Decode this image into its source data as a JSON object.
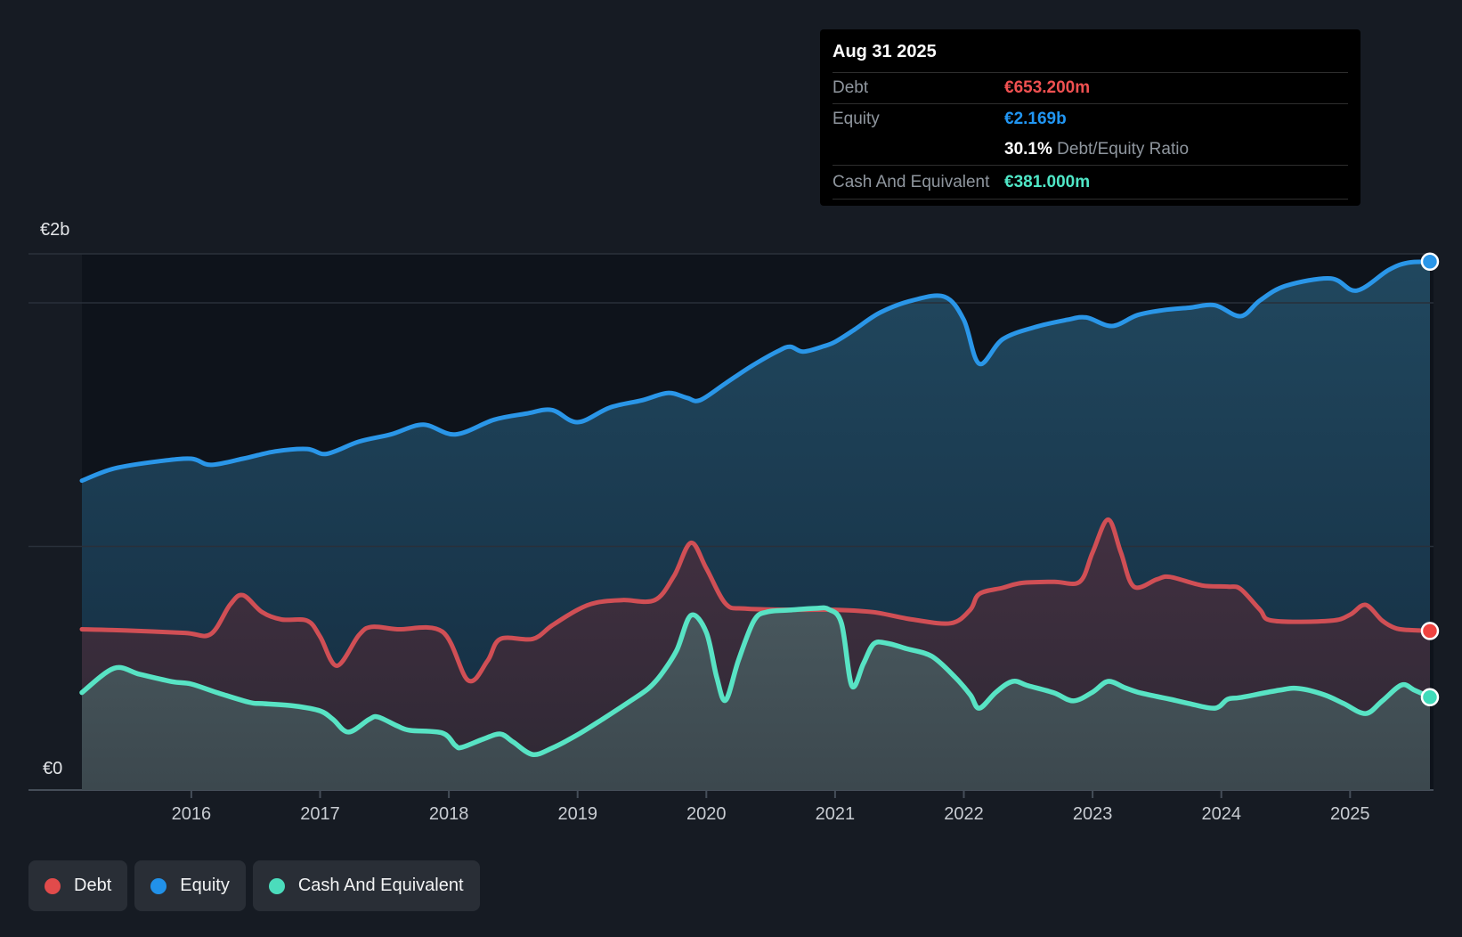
{
  "tooltip": {
    "date": "Aug 31 2025",
    "debt_label": "Debt",
    "debt_value": "€653.200m",
    "equity_label": "Equity",
    "equity_value": "€2.169b",
    "ratio_value": "30.1%",
    "ratio_label": "Debt/Equity Ratio",
    "cash_label": "Cash And Equivalent",
    "cash_value": "€381.000m"
  },
  "legend": {
    "items": [
      {
        "label": "Debt",
        "color": "#e14b4b"
      },
      {
        "label": "Equity",
        "color": "#2191e9"
      },
      {
        "label": "Cash And Equivalent",
        "color": "#4bdcbc"
      }
    ]
  },
  "colors": {
    "background": "#161b23",
    "plot_background": "#0e131b",
    "gridline": "#29303a",
    "plot_top_border": "#2a313b",
    "axis_line": "#454e59",
    "debt": "#d04f55",
    "equity": "#2a96e8",
    "cash": "#58e3c4",
    "debt_marker": "#ee4340",
    "equity_marker": "#2a96e8",
    "cash_marker": "#3fdbba",
    "debt_value_text": "#f05151",
    "equity_value_text": "#2196f3",
    "cash_value_text": "#4fe6c6"
  },
  "chart_data": {
    "type": "area",
    "unit": "EUR billions",
    "x_unit": "decimal_year",
    "grid": true,
    "legend_position": "bottom-left",
    "x_axis": {
      "tick_labels": [
        "2016",
        "2017",
        "2018",
        "2019",
        "2020",
        "2021",
        "2022",
        "2023",
        "2024",
        "2025"
      ],
      "range_decimal_years": [
        2015.15,
        2025.66
      ]
    },
    "y_axis": {
      "top_label": "€2b",
      "bottom_label": "€0",
      "ylim": [
        0,
        2.2
      ],
      "gridline_values": [
        1,
        2
      ]
    },
    "series": [
      {
        "name": "Debt",
        "points": [
          [
            2015.15,
            0.66
          ],
          [
            2015.5,
            0.655
          ],
          [
            2015.95,
            0.645
          ],
          [
            2016.15,
            0.64
          ],
          [
            2016.3,
            0.76
          ],
          [
            2016.4,
            0.8
          ],
          [
            2016.55,
            0.73
          ],
          [
            2016.7,
            0.7
          ],
          [
            2016.9,
            0.695
          ],
          [
            2017.0,
            0.63
          ],
          [
            2017.13,
            0.51
          ],
          [
            2017.3,
            0.635
          ],
          [
            2017.4,
            0.67
          ],
          [
            2017.6,
            0.66
          ],
          [
            2017.95,
            0.65
          ],
          [
            2018.15,
            0.45
          ],
          [
            2018.3,
            0.53
          ],
          [
            2018.4,
            0.62
          ],
          [
            2018.65,
            0.62
          ],
          [
            2018.8,
            0.675
          ],
          [
            2019.0,
            0.74
          ],
          [
            2019.15,
            0.77
          ],
          [
            2019.35,
            0.78
          ],
          [
            2019.6,
            0.78
          ],
          [
            2019.75,
            0.88
          ],
          [
            2019.88,
            1.015
          ],
          [
            2020.0,
            0.91
          ],
          [
            2020.15,
            0.765
          ],
          [
            2020.3,
            0.745
          ],
          [
            2020.7,
            0.74
          ],
          [
            2021.0,
            0.74
          ],
          [
            2021.3,
            0.73
          ],
          [
            2021.6,
            0.7
          ],
          [
            2021.9,
            0.685
          ],
          [
            2022.05,
            0.74
          ],
          [
            2022.12,
            0.805
          ],
          [
            2022.3,
            0.83
          ],
          [
            2022.45,
            0.85
          ],
          [
            2022.7,
            0.855
          ],
          [
            2022.9,
            0.855
          ],
          [
            2023.0,
            0.975
          ],
          [
            2023.12,
            1.11
          ],
          [
            2023.22,
            0.975
          ],
          [
            2023.32,
            0.835
          ],
          [
            2023.5,
            0.865
          ],
          [
            2023.6,
            0.875
          ],
          [
            2023.85,
            0.84
          ],
          [
            2024.05,
            0.835
          ],
          [
            2024.15,
            0.825
          ],
          [
            2024.3,
            0.74
          ],
          [
            2024.4,
            0.695
          ],
          [
            2024.85,
            0.695
          ],
          [
            2025.0,
            0.72
          ],
          [
            2025.12,
            0.76
          ],
          [
            2025.25,
            0.695
          ],
          [
            2025.35,
            0.665
          ],
          [
            2025.45,
            0.657
          ],
          [
            2025.62,
            0.6532
          ]
        ]
      },
      {
        "name": "Equity",
        "points": [
          [
            2015.15,
            1.27
          ],
          [
            2015.4,
            1.32
          ],
          [
            2015.75,
            1.35
          ],
          [
            2016.0,
            1.36
          ],
          [
            2016.15,
            1.335
          ],
          [
            2016.4,
            1.36
          ],
          [
            2016.65,
            1.39
          ],
          [
            2016.9,
            1.4
          ],
          [
            2017.05,
            1.38
          ],
          [
            2017.3,
            1.43
          ],
          [
            2017.55,
            1.46
          ],
          [
            2017.8,
            1.5
          ],
          [
            2018.05,
            1.46
          ],
          [
            2018.35,
            1.52
          ],
          [
            2018.6,
            1.545
          ],
          [
            2018.8,
            1.56
          ],
          [
            2019.0,
            1.51
          ],
          [
            2019.25,
            1.57
          ],
          [
            2019.5,
            1.6
          ],
          [
            2019.7,
            1.63
          ],
          [
            2019.85,
            1.61
          ],
          [
            2019.95,
            1.6
          ],
          [
            2020.15,
            1.67
          ],
          [
            2020.35,
            1.74
          ],
          [
            2020.55,
            1.8
          ],
          [
            2020.65,
            1.82
          ],
          [
            2020.75,
            1.8
          ],
          [
            2020.9,
            1.82
          ],
          [
            2021.0,
            1.84
          ],
          [
            2021.15,
            1.89
          ],
          [
            2021.35,
            1.96
          ],
          [
            2021.6,
            2.01
          ],
          [
            2021.85,
            2.025
          ],
          [
            2022.0,
            1.93
          ],
          [
            2022.12,
            1.75
          ],
          [
            2022.3,
            1.85
          ],
          [
            2022.55,
            1.9
          ],
          [
            2022.8,
            1.93
          ],
          [
            2022.95,
            1.94
          ],
          [
            2023.15,
            1.905
          ],
          [
            2023.35,
            1.95
          ],
          [
            2023.55,
            1.97
          ],
          [
            2023.75,
            1.98
          ],
          [
            2023.95,
            1.99
          ],
          [
            2024.15,
            1.945
          ],
          [
            2024.3,
            2.01
          ],
          [
            2024.5,
            2.07
          ],
          [
            2024.85,
            2.1
          ],
          [
            2025.05,
            2.05
          ],
          [
            2025.3,
            2.135
          ],
          [
            2025.45,
            2.165
          ],
          [
            2025.62,
            2.169
          ]
        ]
      },
      {
        "name": "Cash And Equivalent",
        "points": [
          [
            2015.15,
            0.4
          ],
          [
            2015.4,
            0.5
          ],
          [
            2015.6,
            0.475
          ],
          [
            2015.85,
            0.445
          ],
          [
            2016.0,
            0.435
          ],
          [
            2016.2,
            0.4
          ],
          [
            2016.45,
            0.36
          ],
          [
            2016.55,
            0.355
          ],
          [
            2016.8,
            0.345
          ],
          [
            2017.0,
            0.325
          ],
          [
            2017.1,
            0.29
          ],
          [
            2017.22,
            0.238
          ],
          [
            2017.38,
            0.29
          ],
          [
            2017.45,
            0.3
          ],
          [
            2017.6,
            0.263
          ],
          [
            2017.7,
            0.245
          ],
          [
            2017.95,
            0.234
          ],
          [
            2018.05,
            0.183
          ],
          [
            2018.1,
            0.175
          ],
          [
            2018.27,
            0.21
          ],
          [
            2018.4,
            0.23
          ],
          [
            2018.5,
            0.197
          ],
          [
            2018.65,
            0.146
          ],
          [
            2018.8,
            0.172
          ],
          [
            2019.0,
            0.227
          ],
          [
            2019.2,
            0.293
          ],
          [
            2019.4,
            0.362
          ],
          [
            2019.55,
            0.417
          ],
          [
            2019.65,
            0.475
          ],
          [
            2019.77,
            0.574
          ],
          [
            2019.88,
            0.717
          ],
          [
            2020.0,
            0.647
          ],
          [
            2020.08,
            0.464
          ],
          [
            2020.15,
            0.369
          ],
          [
            2020.25,
            0.534
          ],
          [
            2020.37,
            0.695
          ],
          [
            2020.47,
            0.731
          ],
          [
            2020.65,
            0.739
          ],
          [
            2020.85,
            0.746
          ],
          [
            2020.95,
            0.742
          ],
          [
            2021.05,
            0.684
          ],
          [
            2021.13,
            0.428
          ],
          [
            2021.22,
            0.519
          ],
          [
            2021.3,
            0.6
          ],
          [
            2021.4,
            0.603
          ],
          [
            2021.55,
            0.581
          ],
          [
            2021.75,
            0.549
          ],
          [
            2021.93,
            0.464
          ],
          [
            2022.05,
            0.391
          ],
          [
            2022.12,
            0.336
          ],
          [
            2022.25,
            0.402
          ],
          [
            2022.38,
            0.446
          ],
          [
            2022.5,
            0.428
          ],
          [
            2022.7,
            0.399
          ],
          [
            2022.85,
            0.366
          ],
          [
            2023.0,
            0.402
          ],
          [
            2023.12,
            0.446
          ],
          [
            2023.25,
            0.42
          ],
          [
            2023.35,
            0.402
          ],
          [
            2023.5,
            0.384
          ],
          [
            2023.6,
            0.373
          ],
          [
            2023.75,
            0.355
          ],
          [
            2023.95,
            0.336
          ],
          [
            2024.05,
            0.373
          ],
          [
            2024.15,
            0.38
          ],
          [
            2024.45,
            0.41
          ],
          [
            2024.6,
            0.417
          ],
          [
            2024.8,
            0.391
          ],
          [
            2024.95,
            0.355
          ],
          [
            2025.12,
            0.314
          ],
          [
            2025.25,
            0.366
          ],
          [
            2025.4,
            0.431
          ],
          [
            2025.5,
            0.41
          ],
          [
            2025.62,
            0.381
          ]
        ]
      }
    ]
  }
}
